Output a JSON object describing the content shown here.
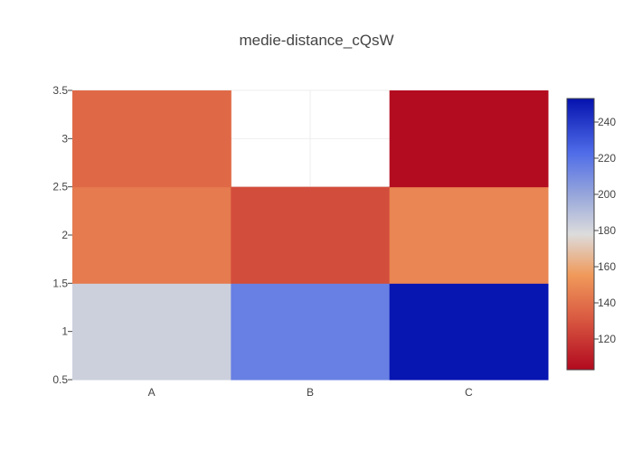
{
  "chart_data": {
    "type": "heatmap",
    "title": "medie-distance_cQsW",
    "xlabel": "",
    "ylabel": "",
    "x_categories": [
      "A",
      "B",
      "C"
    ],
    "y_values": [
      1,
      2,
      3
    ],
    "z": [
      [
        183,
        215,
        252
      ],
      [
        144,
        127,
        148
      ],
      [
        137,
        null,
        104
      ]
    ],
    "ylim": [
      0.5,
      3.5
    ],
    "y_ticks": [
      "0.5",
      "1",
      "1.5",
      "2",
      "2.5",
      "3",
      "3.5"
    ],
    "colorscale": {
      "name": "RdBu-like",
      "min": 103,
      "max": 253,
      "stops": [
        [
          0.0,
          "#b2091f"
        ],
        [
          0.2,
          "#db5e43"
        ],
        [
          0.35,
          "#f09a5b"
        ],
        [
          0.5,
          "#dcdcdc"
        ],
        [
          0.65,
          "#94a4db"
        ],
        [
          0.8,
          "#4f6ce8"
        ],
        [
          1.0,
          "#0512af"
        ]
      ],
      "ticks": [
        "120",
        "140",
        "160",
        "180",
        "200",
        "220",
        "240"
      ]
    },
    "grid": true,
    "legend": "colorbar-right"
  }
}
